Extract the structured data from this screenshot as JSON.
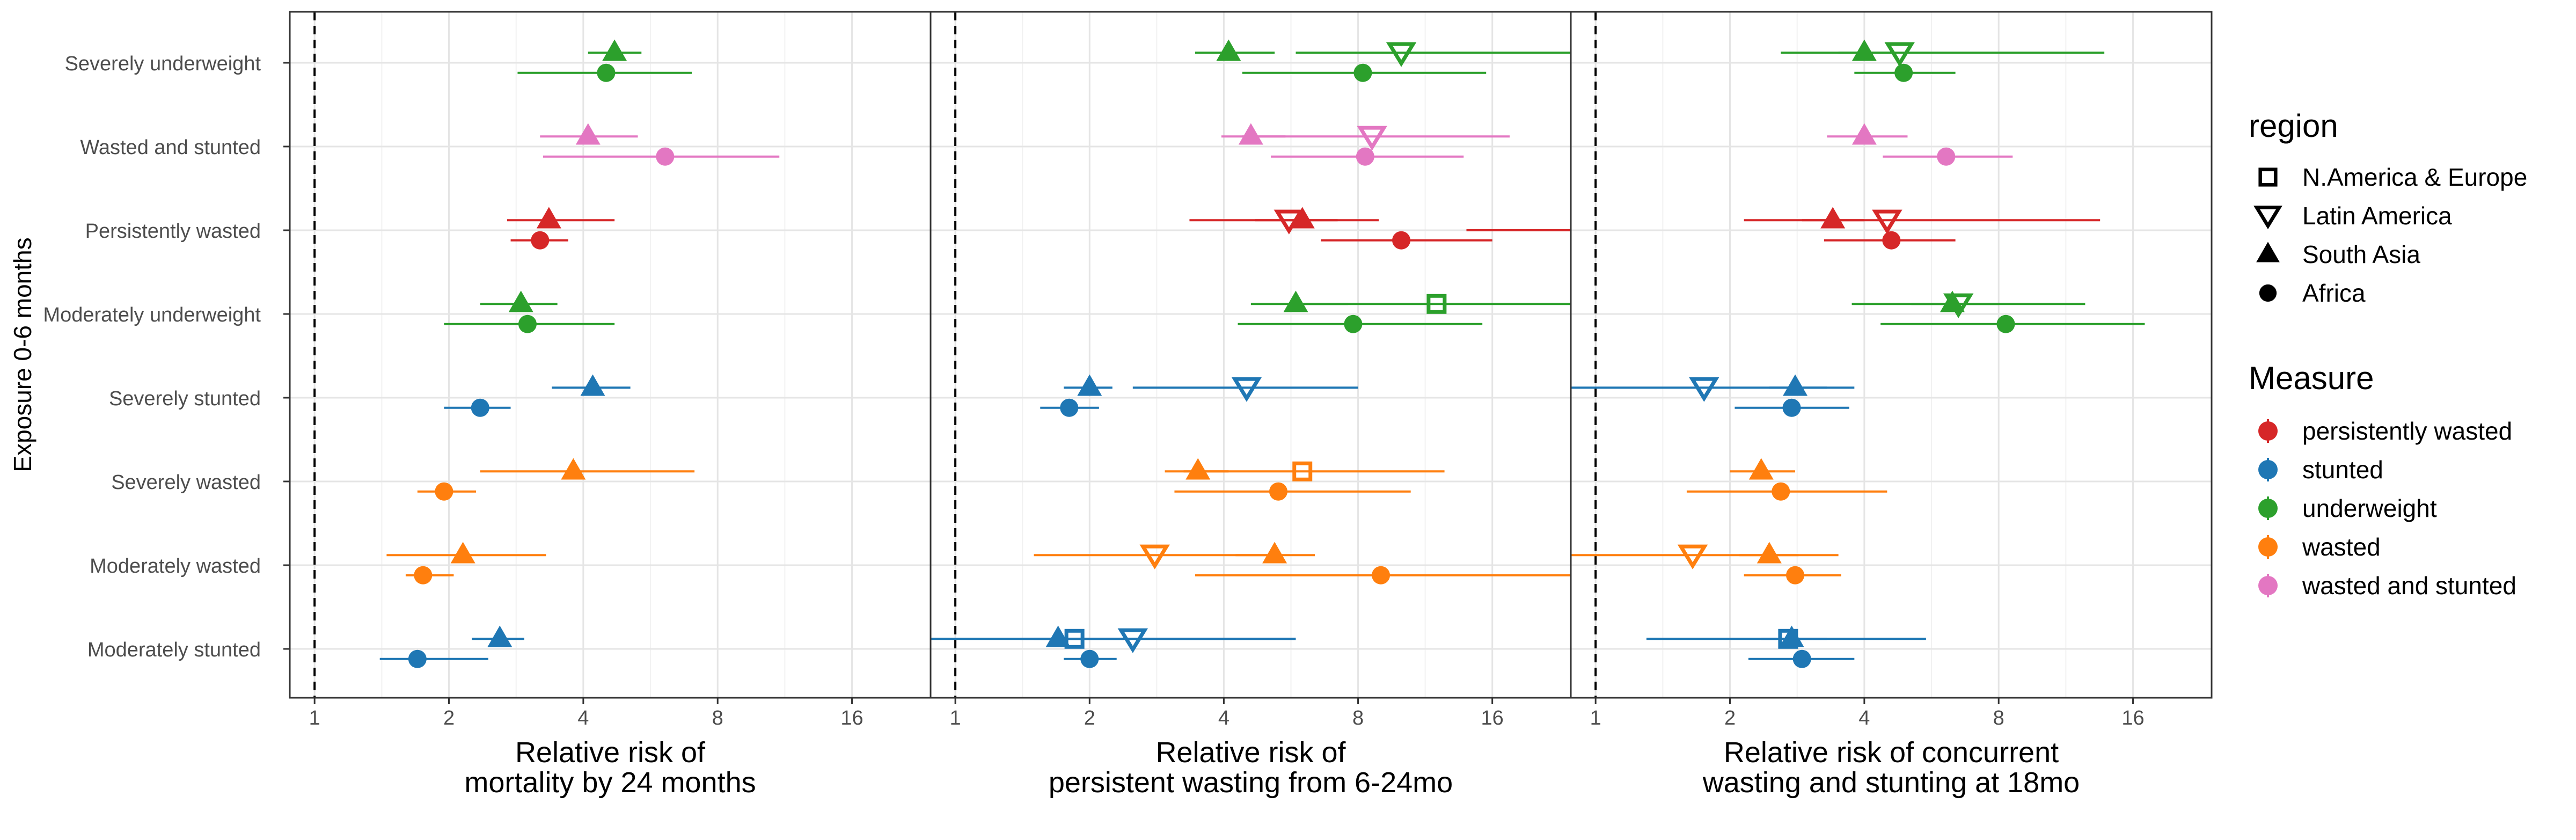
{
  "y_axis_title": "Exposure 0-6 months",
  "chart_data": {
    "type": "forest",
    "x_scale": "log2",
    "xlim": [
      0.88,
      24
    ],
    "x_ticks": [
      1,
      2,
      4,
      8,
      16
    ],
    "x_tick_labels": [
      "1",
      "2",
      "4",
      "8",
      "16"
    ],
    "reference_line": 1,
    "grid": true,
    "categories": [
      "Severely underweight",
      "Wasted and stunted",
      "Persistently wasted",
      "Moderately underweight",
      "Severely stunted",
      "Severely wasted",
      "Moderately wasted",
      "Moderately stunted"
    ],
    "region_offsets": {
      "N.America & Europe": -0.12,
      "Latin America": -0.12,
      "South Asia": -0.12,
      "Africa": 0.12
    },
    "panels": [
      {
        "xlabel_lines": [
          "Relative risk of",
          "mortality by 24 months"
        ],
        "points": [
          {
            "category": "Severely underweight",
            "region": "South Asia",
            "measure": "underweight",
            "est": 4.7,
            "lo": 4.1,
            "hi": 5.4
          },
          {
            "category": "Severely underweight",
            "region": "Africa",
            "measure": "underweight",
            "est": 4.5,
            "lo": 2.85,
            "hi": 7.0
          },
          {
            "category": "Wasted and stunted",
            "region": "South Asia",
            "measure": "wasted and stunted",
            "est": 4.1,
            "lo": 3.2,
            "hi": 5.3
          },
          {
            "category": "Wasted and stunted",
            "region": "Africa",
            "measure": "wasted and stunted",
            "est": 6.1,
            "lo": 3.25,
            "hi": 11.0
          },
          {
            "category": "Persistently wasted",
            "region": "South Asia",
            "measure": "persistently wasted",
            "est": 3.35,
            "lo": 2.7,
            "hi": 4.7
          },
          {
            "category": "Persistently wasted",
            "region": "Africa",
            "measure": "persistently wasted",
            "est": 3.2,
            "lo": 2.75,
            "hi": 3.7
          },
          {
            "category": "Moderately underweight",
            "region": "South Asia",
            "measure": "underweight",
            "est": 2.9,
            "lo": 2.35,
            "hi": 3.5
          },
          {
            "category": "Moderately underweight",
            "region": "Africa",
            "measure": "underweight",
            "est": 3.0,
            "lo": 1.95,
            "hi": 4.7
          },
          {
            "category": "Severely stunted",
            "region": "South Asia",
            "measure": "stunted",
            "est": 4.2,
            "lo": 3.4,
            "hi": 5.1
          },
          {
            "category": "Severely stunted",
            "region": "Africa",
            "measure": "stunted",
            "est": 2.35,
            "lo": 1.95,
            "hi": 2.75
          },
          {
            "category": "Severely wasted",
            "region": "South Asia",
            "measure": "wasted",
            "est": 3.8,
            "lo": 2.35,
            "hi": 7.1
          },
          {
            "category": "Severely wasted",
            "region": "Africa",
            "measure": "wasted",
            "est": 1.95,
            "lo": 1.7,
            "hi": 2.3
          },
          {
            "category": "Moderately wasted",
            "region": "South Asia",
            "measure": "wasted",
            "est": 2.15,
            "lo": 1.45,
            "hi": 3.3
          },
          {
            "category": "Moderately wasted",
            "region": "Africa",
            "measure": "wasted",
            "est": 1.75,
            "lo": 1.6,
            "hi": 2.05
          },
          {
            "category": "Moderately stunted",
            "region": "South Asia",
            "measure": "stunted",
            "est": 2.6,
            "lo": 2.25,
            "hi": 2.95
          },
          {
            "category": "Moderately stunted",
            "region": "Africa",
            "measure": "stunted",
            "est": 1.7,
            "lo": 1.4,
            "hi": 2.45
          }
        ]
      },
      {
        "xlabel_lines": [
          "Relative risk of",
          "persistent wasting from 6-24mo"
        ],
        "points": [
          {
            "category": "Severely underweight",
            "region": "Latin America",
            "measure": "underweight",
            "est": 10.0,
            "lo": 5.8,
            "hi": 24
          },
          {
            "category": "Severely underweight",
            "region": "South Asia",
            "measure": "underweight",
            "est": 4.1,
            "lo": 3.45,
            "hi": 5.2
          },
          {
            "category": "Severely underweight",
            "region": "Africa",
            "measure": "underweight",
            "est": 8.2,
            "lo": 4.4,
            "hi": 15.5
          },
          {
            "category": "Wasted and stunted",
            "region": "Latin America",
            "measure": "wasted and stunted",
            "est": 8.6,
            "lo": 4.4,
            "hi": 17.5
          },
          {
            "category": "Wasted and stunted",
            "region": "South Asia",
            "measure": "wasted and stunted",
            "est": 4.6,
            "lo": 3.95,
            "hi": 5.5
          },
          {
            "category": "Wasted and stunted",
            "region": "Africa",
            "measure": "wasted and stunted",
            "est": 8.3,
            "lo": 5.1,
            "hi": 13.8
          },
          {
            "category": "Persistently wasted",
            "region": "Latin America",
            "measure": "persistently wasted",
            "est": 5.6,
            "lo": 3.35,
            "hi": 8.9
          },
          {
            "category": "Persistently wasted",
            "region": "South Asia",
            "measure": "persistently wasted",
            "est": 6.0,
            "lo": 4.7,
            "hi": 7.2
          },
          {
            "category": "Persistently wasted",
            "region": "Africa",
            "measure": "persistently wasted",
            "est": 10.0,
            "lo": 6.6,
            "hi": 16.0
          },
          {
            "category": "Persistently wasted",
            "region": "",
            "measure": "persistently wasted",
            "est": null,
            "lo": 14.0,
            "hi": 24
          },
          {
            "category": "Moderately underweight",
            "region": "N.America & Europe",
            "measure": "underweight",
            "est": 12.0,
            "lo": 5.6,
            "hi": 24
          },
          {
            "category": "Moderately underweight",
            "region": "South Asia",
            "measure": "underweight",
            "est": 5.8,
            "lo": 4.6,
            "hi": 7.6
          },
          {
            "category": "Moderately underweight",
            "region": "Africa",
            "measure": "underweight",
            "est": 7.8,
            "lo": 4.3,
            "hi": 15.2
          },
          {
            "category": "Severely stunted",
            "region": "Latin America",
            "measure": "stunted",
            "est": 4.5,
            "lo": 2.5,
            "hi": 8.0
          },
          {
            "category": "Severely stunted",
            "region": "South Asia",
            "measure": "stunted",
            "est": 2.0,
            "lo": 1.75,
            "hi": 2.25
          },
          {
            "category": "Severely stunted",
            "region": "Africa",
            "measure": "stunted",
            "est": 1.8,
            "lo": 1.55,
            "hi": 2.1
          },
          {
            "category": "Severely wasted",
            "region": "N.America & Europe",
            "measure": "wasted",
            "est": 6.0,
            "lo": 3.25,
            "hi": 12.5
          },
          {
            "category": "Severely wasted",
            "region": "South Asia",
            "measure": "wasted",
            "est": 3.5,
            "lo": 2.95,
            "hi": 4.1
          },
          {
            "category": "Severely wasted",
            "region": "Africa",
            "measure": "wasted",
            "est": 5.3,
            "lo": 3.1,
            "hi": 10.5
          },
          {
            "category": "Moderately wasted",
            "region": "Latin America",
            "measure": "wasted",
            "est": 2.8,
            "lo": 1.5,
            "hi": 5.0
          },
          {
            "category": "Moderately wasted",
            "region": "South Asia",
            "measure": "wasted",
            "est": 5.2,
            "lo": 4.25,
            "hi": 6.4
          },
          {
            "category": "Moderately wasted",
            "region": "Africa",
            "measure": "wasted",
            "est": 9.0,
            "lo": 3.45,
            "hi": 24
          },
          {
            "category": "Moderately stunted",
            "region": "N.America & Europe",
            "measure": "stunted",
            "est": 1.85,
            "lo": 0.88,
            "hi": 5.8
          },
          {
            "category": "Moderately stunted",
            "region": "Latin America",
            "measure": "stunted",
            "est": 2.5,
            "lo": 1.4,
            "hi": 5.8
          },
          {
            "category": "Moderately stunted",
            "region": "South Asia",
            "measure": "stunted",
            "est": 1.7,
            "lo": 1.5,
            "hi": 1.95
          },
          {
            "category": "Moderately stunted",
            "region": "Africa",
            "measure": "stunted",
            "est": 2.0,
            "lo": 1.75,
            "hi": 2.3
          }
        ]
      },
      {
        "xlabel_lines": [
          "Relative risk of concurrent",
          "wasting and stunting at 18mo"
        ],
        "points": [
          {
            "category": "Severely underweight",
            "region": "Latin America",
            "measure": "underweight",
            "est": 4.8,
            "lo": 2.6,
            "hi": 13.8
          },
          {
            "category": "Severely underweight",
            "region": "South Asia",
            "measure": "underweight",
            "est": 4.0,
            "lo": 3.5,
            "hi": 4.7
          },
          {
            "category": "Severely underweight",
            "region": "Africa",
            "measure": "underweight",
            "est": 4.9,
            "lo": 3.8,
            "hi": 6.4
          },
          {
            "category": "Wasted and stunted",
            "region": "South Asia",
            "measure": "wasted and stunted",
            "est": 4.0,
            "lo": 3.3,
            "hi": 5.0
          },
          {
            "category": "Wasted and stunted",
            "region": "Africa",
            "measure": "wasted and stunted",
            "est": 6.1,
            "lo": 4.4,
            "hi": 8.6
          },
          {
            "category": "Persistently wasted",
            "region": "Latin America",
            "measure": "persistently wasted",
            "est": 4.5,
            "lo": 2.15,
            "hi": 13.5
          },
          {
            "category": "Persistently wasted",
            "region": "South Asia",
            "measure": "persistently wasted",
            "est": 3.4,
            "lo": 2.9,
            "hi": 4.0
          },
          {
            "category": "Persistently wasted",
            "region": "Africa",
            "measure": "persistently wasted",
            "est": 4.6,
            "lo": 3.25,
            "hi": 6.4
          },
          {
            "category": "Moderately underweight",
            "region": "Latin America",
            "measure": "underweight",
            "est": 6.5,
            "lo": 3.75,
            "hi": 12.5
          },
          {
            "category": "Moderately underweight",
            "region": "South Asia",
            "measure": "underweight",
            "est": 6.3,
            "lo": 5.1,
            "hi": 8.0
          },
          {
            "category": "Moderately underweight",
            "region": "Africa",
            "measure": "underweight",
            "est": 8.3,
            "lo": 4.35,
            "hi": 17.0
          },
          {
            "category": "Severely stunted",
            "region": "Latin America",
            "measure": "stunted",
            "est": 1.75,
            "lo": 0.88,
            "hi": 3.8
          },
          {
            "category": "Severely stunted",
            "region": "South Asia",
            "measure": "stunted",
            "est": 2.8,
            "lo": 2.45,
            "hi": 3.3
          },
          {
            "category": "Severely stunted",
            "region": "Africa",
            "measure": "stunted",
            "est": 2.75,
            "lo": 2.05,
            "hi": 3.7
          },
          {
            "category": "Severely wasted",
            "region": "South Asia",
            "measure": "wasted",
            "est": 2.35,
            "lo": 2.0,
            "hi": 2.8
          },
          {
            "category": "Severely wasted",
            "region": "Africa",
            "measure": "wasted",
            "est": 2.6,
            "lo": 1.6,
            "hi": 4.5
          },
          {
            "category": "Moderately wasted",
            "region": "Latin America",
            "measure": "wasted",
            "est": 1.65,
            "lo": 0.88,
            "hi": 3.5
          },
          {
            "category": "Moderately wasted",
            "region": "South Asia",
            "measure": "wasted",
            "est": 2.45,
            "lo": 2.1,
            "hi": 2.85
          },
          {
            "category": "Moderately wasted",
            "region": "Africa",
            "measure": "wasted",
            "est": 2.8,
            "lo": 2.15,
            "hi": 3.55
          },
          {
            "category": "Moderately stunted",
            "region": "N.America & Europe",
            "measure": "stunted",
            "est": 2.7,
            "lo": 1.3,
            "hi": 5.5
          },
          {
            "category": "Moderately stunted",
            "region": "South Asia",
            "measure": "stunted",
            "est": 2.75,
            "lo": 2.35,
            "hi": 3.3
          },
          {
            "category": "Moderately stunted",
            "region": "Africa",
            "measure": "stunted",
            "est": 2.9,
            "lo": 2.2,
            "hi": 3.8
          }
        ]
      }
    ],
    "legend_region": {
      "title": "region",
      "entries": [
        {
          "label": "N.America & Europe",
          "shape": "square-open"
        },
        {
          "label": "Latin America",
          "shape": "triangle-down-open"
        },
        {
          "label": "South Asia",
          "shape": "triangle-filled"
        },
        {
          "label": "Africa",
          "shape": "circle-filled"
        }
      ]
    },
    "legend_measure": {
      "title": "Measure",
      "entries": [
        {
          "label": "persistently wasted",
          "color": "#d62728"
        },
        {
          "label": "stunted",
          "color": "#1f77b4"
        },
        {
          "label": "underweight",
          "color": "#2ca02c"
        },
        {
          "label": "wasted",
          "color": "#ff7f0e"
        },
        {
          "label": "wasted and stunted",
          "color": "#e377c2"
        }
      ]
    }
  }
}
